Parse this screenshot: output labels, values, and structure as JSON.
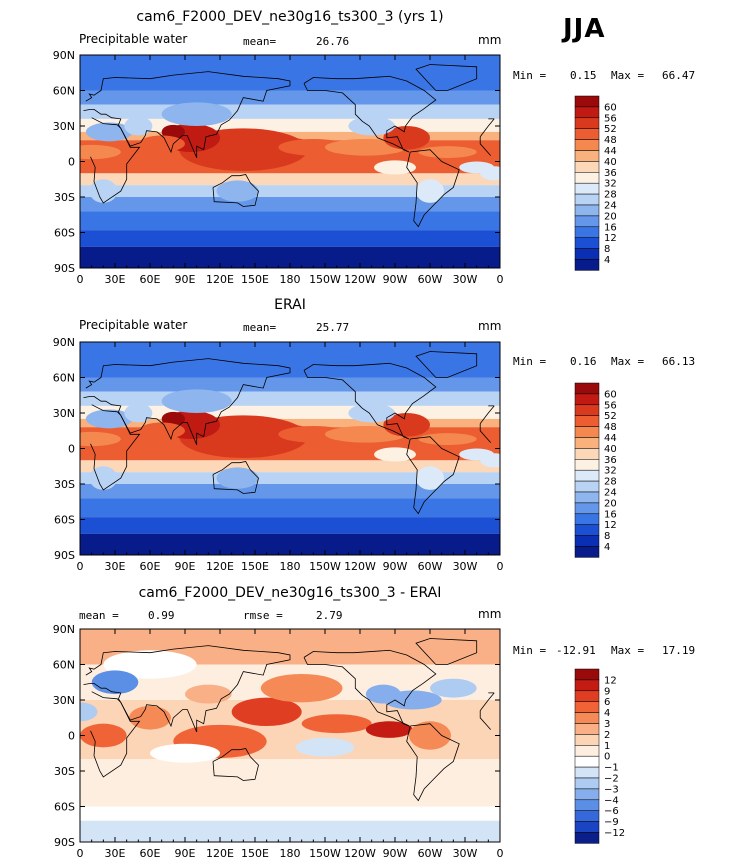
{
  "season": "JJA",
  "chart_data": [
    {
      "type": "heatmap",
      "title": "cam6_F2000_DEV_ne30g16_ts300_3 (yrs 1)",
      "variable": "Precipitable water",
      "stat1_label": "mean=",
      "stat1_value": "26.76",
      "units": "mm",
      "min_label": "Min =",
      "min": "0.15",
      "max_label": "Max =",
      "max": "66.47",
      "xticks": [
        "0",
        "30E",
        "60E",
        "90E",
        "120E",
        "150E",
        "180",
        "150W",
        "120W",
        "90W",
        "60W",
        "30W",
        "0"
      ],
      "yticks": [
        "90N",
        "60N",
        "30N",
        "0",
        "30S",
        "60S",
        "90S"
      ],
      "colorbar_levels": [
        "60",
        "56",
        "52",
        "48",
        "44",
        "40",
        "36",
        "32",
        "28",
        "24",
        "20",
        "16",
        "12",
        "8",
        "4"
      ],
      "colors": [
        "#9a0a0a",
        "#c01a12",
        "#d93a1e",
        "#ec5e32",
        "#f5884f",
        "#f9b17e",
        "#fdd8b8",
        "#fdf1e4",
        "#dce9f8",
        "#b9d3f4",
        "#8fb5ee",
        "#6497ea",
        "#3a75e6",
        "#1b50d5",
        "#0b2fb4",
        "#071c8a"
      ]
    },
    {
      "type": "heatmap",
      "title": "ERAI",
      "variable": "Precipitable water",
      "stat1_label": "mean=",
      "stat1_value": "25.77",
      "units": "mm",
      "min_label": "Min =",
      "min": "0.16",
      "max_label": "Max =",
      "max": "66.13",
      "xticks": [
        "0",
        "30E",
        "60E",
        "90E",
        "120E",
        "150E",
        "180",
        "150W",
        "120W",
        "90W",
        "60W",
        "30W",
        "0"
      ],
      "yticks": [
        "90N",
        "60N",
        "30N",
        "0",
        "30S",
        "60S",
        "90S"
      ],
      "colorbar_levels": [
        "60",
        "56",
        "52",
        "48",
        "44",
        "40",
        "36",
        "32",
        "28",
        "24",
        "20",
        "16",
        "12",
        "8",
        "4"
      ],
      "colors": [
        "#9a0a0a",
        "#c01a12",
        "#d93a1e",
        "#ec5e32",
        "#f5884f",
        "#f9b17e",
        "#fdd8b8",
        "#fdf1e4",
        "#dce9f8",
        "#b9d3f4",
        "#8fb5ee",
        "#6497ea",
        "#3a75e6",
        "#1b50d5",
        "#0b2fb4",
        "#071c8a"
      ]
    },
    {
      "type": "heatmap",
      "title": "cam6_F2000_DEV_ne30g16_ts300_3 - ERAI",
      "stat1_label": "mean =",
      "stat1_value": "0.99",
      "stat2_label": "rmse =",
      "stat2_value": "2.79",
      "units": "mm",
      "min_label": "Min =",
      "min": "-12.91",
      "max_label": "Max =",
      "max": "17.19",
      "xticks": [
        "0",
        "30E",
        "60E",
        "90E",
        "120E",
        "150E",
        "180",
        "150W",
        "120W",
        "90W",
        "60W",
        "30W",
        "0"
      ],
      "yticks": [
        "90N",
        "60N",
        "30N",
        "0",
        "30S",
        "60S",
        "90S"
      ],
      "colorbar_levels": [
        "12",
        "9",
        "6",
        "4",
        "3",
        "2",
        "1",
        "0",
        "−1",
        "−2",
        "−3",
        "−4",
        "−6",
        "−9",
        "−12"
      ],
      "colors": [
        "#9a0a0a",
        "#c41c12",
        "#e03e22",
        "#ef6337",
        "#f58a56",
        "#f9b086",
        "#fcd4b6",
        "#fdeee0",
        "#ffffff",
        "#d4e4f7",
        "#aecbf2",
        "#86aeec",
        "#5b8fe6",
        "#3569db",
        "#1a44c2",
        "#0a1f8c"
      ]
    }
  ]
}
